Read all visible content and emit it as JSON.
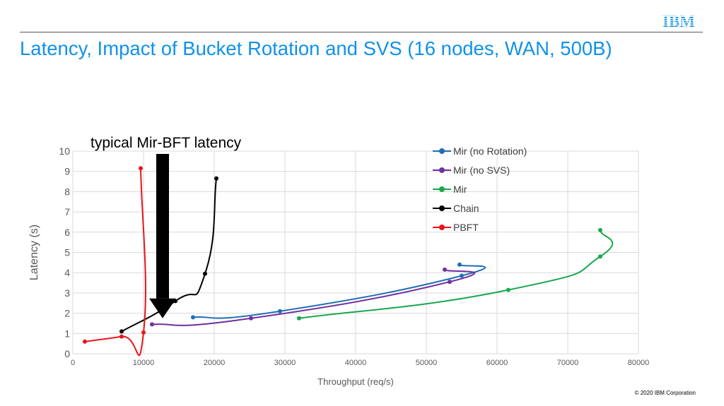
{
  "slide": {
    "title": "Latency, Impact of Bucket Rotation and SVS (16 nodes, WAN, 500B)",
    "logo_text": "IBM",
    "copyright": "© 2020 IBM Corporation",
    "accent_color": "#1192e8"
  },
  "chart_data": {
    "type": "line",
    "title": "",
    "xlabel": "Throughput (req/s)",
    "ylabel": "Latency (s)",
    "xlim": [
      0,
      80000
    ],
    "ylim": [
      0,
      10
    ],
    "xticks": [
      0,
      10000,
      20000,
      30000,
      40000,
      50000,
      60000,
      70000,
      80000
    ],
    "yticks": [
      0,
      1,
      2,
      3,
      4,
      5,
      6,
      7,
      8,
      9,
      10
    ],
    "grid": true,
    "legend_position": "top-right",
    "annotation": {
      "text": "typical Mir-BFT latency",
      "arrow_direction": "down",
      "arrow_tip": {
        "x": 12700,
        "y": 1.75
      }
    },
    "series": [
      {
        "name": "Mir (no Rotation)",
        "color": "#1f6fb4",
        "x": [
          17000,
          29300,
          55000,
          54700
        ],
        "y": [
          1.8,
          2.1,
          3.85,
          4.4
        ]
      },
      {
        "name": "Mir (no SVS)",
        "color": "#7030a0",
        "x": [
          11200,
          25200,
          53300,
          52600
        ],
        "y": [
          1.45,
          1.75,
          3.55,
          4.15
        ]
      },
      {
        "name": "Mir",
        "color": "#19a84e",
        "x": [
          32000,
          61600,
          74600,
          74600
        ],
        "y": [
          1.75,
          3.15,
          4.8,
          6.1
        ]
      },
      {
        "name": "Chain",
        "color": "#000000",
        "x": [
          6900,
          14500,
          18700,
          20300
        ],
        "y": [
          1.1,
          2.6,
          3.95,
          8.65
        ]
      },
      {
        "name": "PBFT",
        "color": "#e8151b",
        "x": [
          1700,
          6900,
          10000,
          9600
        ],
        "y": [
          0.6,
          0.85,
          1.05,
          9.15
        ]
      }
    ]
  }
}
